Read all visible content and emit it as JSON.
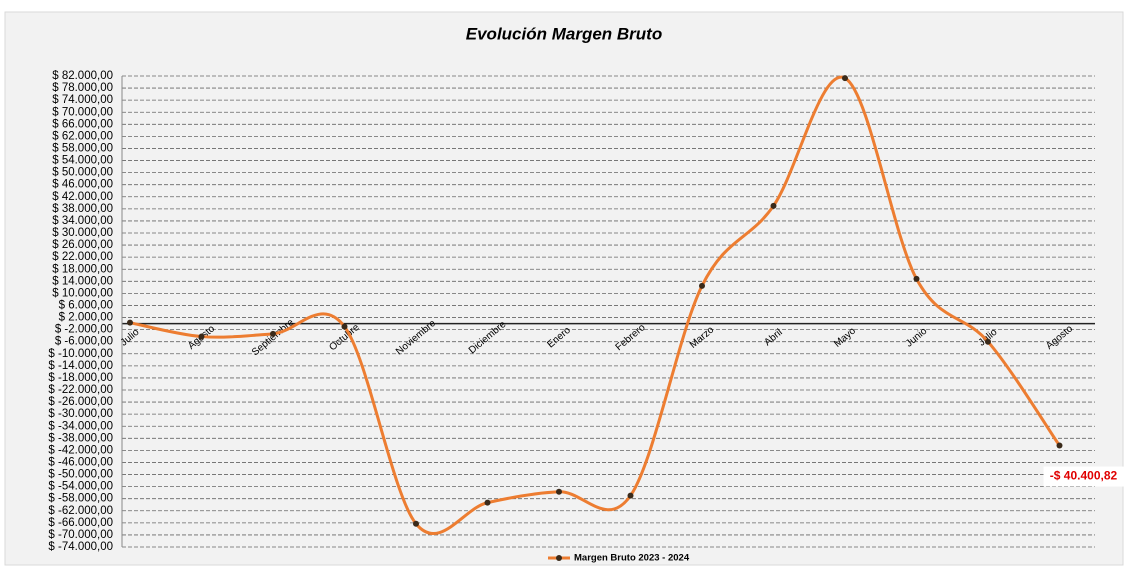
{
  "chart_data": {
    "type": "line",
    "title": "Evolución Margen Bruto",
    "categories": [
      "Julio",
      "Agosto",
      "Septiembre",
      "Octubre",
      "Noviembre",
      "Diciembre",
      "Enero",
      "Febrero",
      "Marzo",
      "Abril",
      "Mayo",
      "Junio",
      "Julio",
      "Agosto"
    ],
    "series": [
      {
        "name": "Margen Bruto 2023 - 2024",
        "color": "#ed7d31",
        "marker_color": "#3a2a1a",
        "values": [
          300,
          -4300,
          -3400,
          -1000,
          -66300,
          -59300,
          -55700,
          -57000,
          12500,
          39000,
          81300,
          14800,
          -6000,
          -40400.82
        ],
        "value_labels": [
          null,
          null,
          null,
          null,
          null,
          null,
          null,
          null,
          null,
          null,
          null,
          null,
          null,
          "-$ 40.400,82"
        ]
      }
    ],
    "ylim": [
      -74000,
      82000
    ],
    "yticks": [
      {
        "value": 82000,
        "label": "$ 82.000,00"
      },
      {
        "value": 78000,
        "label": "$ 78.000,00"
      },
      {
        "value": 74000,
        "label": "$ 74.000,00"
      },
      {
        "value": 70000,
        "label": "$ 70.000,00"
      },
      {
        "value": 66000,
        "label": "$ 66.000,00"
      },
      {
        "value": 62000,
        "label": "$ 62.000,00"
      },
      {
        "value": 58000,
        "label": "$ 58.000,00"
      },
      {
        "value": 54000,
        "label": "$ 54.000,00"
      },
      {
        "value": 50000,
        "label": "$ 50.000,00"
      },
      {
        "value": 46000,
        "label": "$ 46.000,00"
      },
      {
        "value": 42000,
        "label": "$ 42.000,00"
      },
      {
        "value": 38000,
        "label": "$ 38.000,00"
      },
      {
        "value": 34000,
        "label": "$ 34.000,00"
      },
      {
        "value": 30000,
        "label": "$ 30.000,00"
      },
      {
        "value": 26000,
        "label": "$ 26.000,00"
      },
      {
        "value": 22000,
        "label": "$ 22.000,00"
      },
      {
        "value": 18000,
        "label": "$ 18.000,00"
      },
      {
        "value": 14000,
        "label": "$ 14.000,00"
      },
      {
        "value": 10000,
        "label": "$ 10.000,00"
      },
      {
        "value": 6000,
        "label": "$ 6.000,00"
      },
      {
        "value": 2000,
        "label": "$ 2.000,00"
      },
      {
        "value": -2000,
        "label": "$ -2.000,00"
      },
      {
        "value": -6000,
        "label": "$ -6.000,00"
      },
      {
        "value": -10000,
        "label": "$ -10.000,00"
      },
      {
        "value": -14000,
        "label": "$ -14.000,00"
      },
      {
        "value": -18000,
        "label": "$ -18.000,00"
      },
      {
        "value": -22000,
        "label": "$ -22.000,00"
      },
      {
        "value": -26000,
        "label": "$ -26.000,00"
      },
      {
        "value": -30000,
        "label": "$ -30.000,00"
      },
      {
        "value": -34000,
        "label": "$ -34.000,00"
      },
      {
        "value": -38000,
        "label": "$ -38.000,00"
      },
      {
        "value": -42000,
        "label": "$ -42.000,00"
      },
      {
        "value": -46000,
        "label": "$ -46.000,00"
      },
      {
        "value": -50000,
        "label": "$ -50.000,00"
      },
      {
        "value": -54000,
        "label": "$ -54.000,00"
      },
      {
        "value": -58000,
        "label": "$ -58.000,00"
      },
      {
        "value": -62000,
        "label": "$ -62.000,00"
      },
      {
        "value": -66000,
        "label": "$ -66.000,00"
      },
      {
        "value": -70000,
        "label": "$ -70.000,00"
      },
      {
        "value": -74000,
        "label": "$ -74.000,00"
      }
    ],
    "grid": true,
    "legend": "bottom"
  }
}
